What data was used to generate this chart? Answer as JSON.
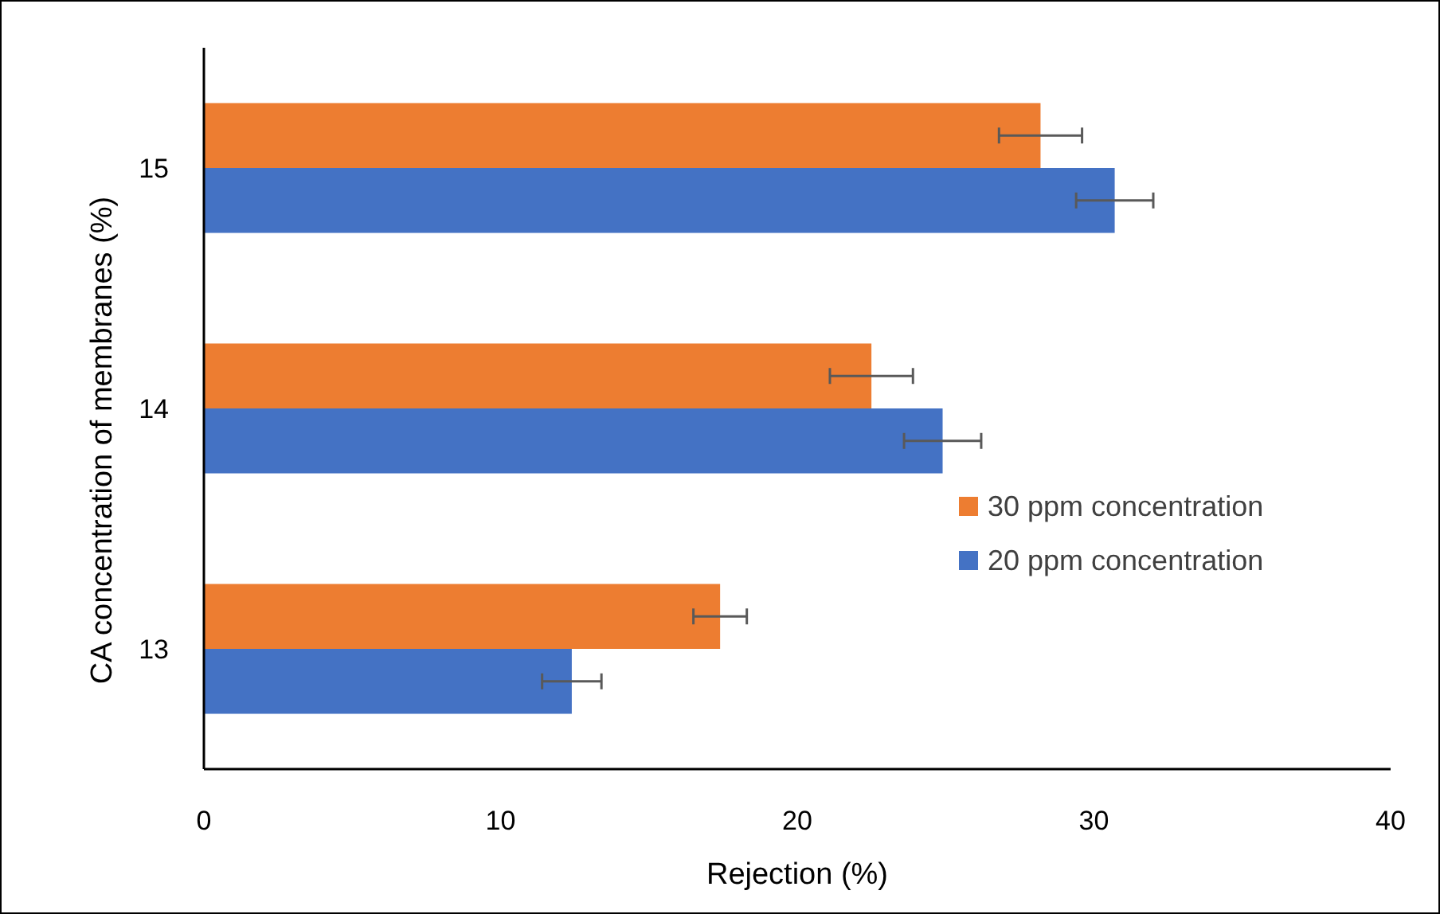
{
  "chart_data": {
    "type": "bar",
    "orientation": "horizontal",
    "xlabel": "Rejection (%)",
    "ylabel": "CA concentration of membranes (%)",
    "categories": [
      "15",
      "14",
      "13"
    ],
    "series": [
      {
        "name": "30 ppm concentration",
        "color": "#ed7d31",
        "values": [
          28.2,
          22.5,
          17.4
        ],
        "errors": [
          1.4,
          1.4,
          0.9
        ]
      },
      {
        "name": "20 ppm concentration",
        "color": "#4472c4",
        "values": [
          30.7,
          24.9,
          12.4
        ],
        "errors": [
          1.3,
          1.3,
          1.0
        ]
      }
    ],
    "xlim": [
      0,
      40
    ],
    "xticks": [
      0,
      10,
      20,
      30,
      40
    ],
    "grid": false,
    "legend": "right"
  }
}
